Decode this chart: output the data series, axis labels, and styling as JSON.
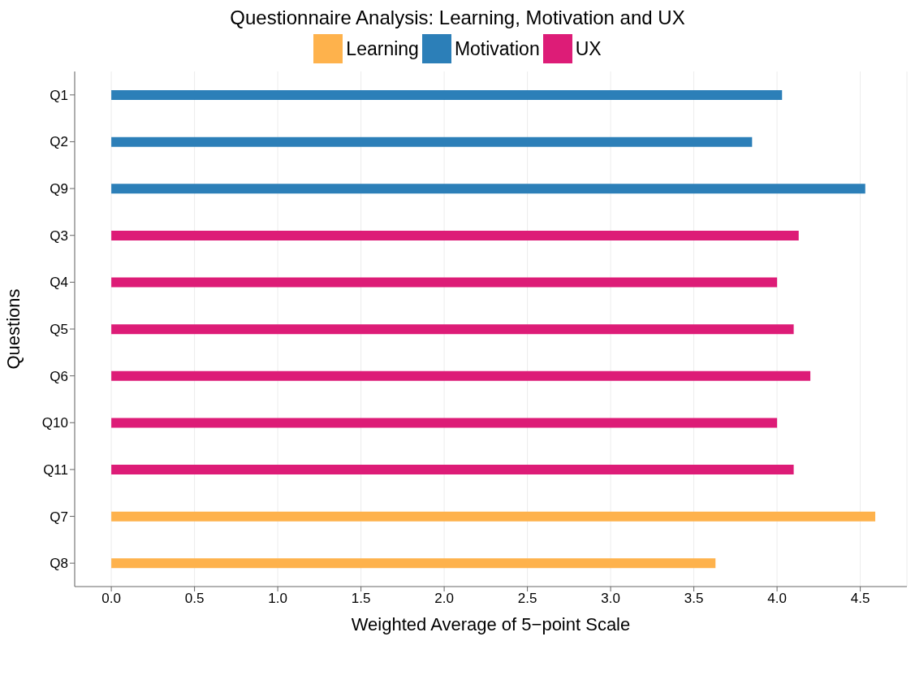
{
  "chart_data": {
    "type": "bar",
    "orientation": "horizontal",
    "stacked": true,
    "title": "Questionnaire Analysis: Learning, Motivation and UX",
    "xlabel": "Weighted Average of 5−point Scale",
    "ylabel": "Questions",
    "categories": [
      "Q1",
      "Q2",
      "Q9",
      "Q3",
      "Q4",
      "Q5",
      "Q6",
      "Q10",
      "Q11",
      "Q7",
      "Q8"
    ],
    "series": [
      {
        "name": "Learning",
        "color": "#feb24c",
        "values": [
          null,
          null,
          null,
          null,
          null,
          null,
          null,
          null,
          null,
          4.59,
          3.63
        ]
      },
      {
        "name": "Motivation",
        "color": "#2c7fb8",
        "values": [
          4.03,
          3.85,
          4.53,
          null,
          null,
          null,
          null,
          null,
          null,
          null,
          null
        ]
      },
      {
        "name": "UX",
        "color": "#dd1c77",
        "values": [
          null,
          null,
          null,
          4.13,
          4.0,
          4.1,
          4.2,
          4.0,
          4.1,
          null,
          null
        ]
      }
    ],
    "xlim": [
      -0.22,
      4.78
    ],
    "xticks": [
      {
        "value": 0,
        "label": "0.0"
      },
      {
        "value": 0.5,
        "label": "0.5"
      },
      {
        "value": 1,
        "label": "1.0"
      },
      {
        "value": 1.5,
        "label": "1.5"
      },
      {
        "value": 2,
        "label": "2.0"
      },
      {
        "value": 2.5,
        "label": "2.5"
      },
      {
        "value": 3,
        "label": "3.0"
      },
      {
        "value": 3.5,
        "label": "3.5"
      },
      {
        "value": 4,
        "label": "4.0"
      },
      {
        "value": 4.5,
        "label": "4.5"
      }
    ],
    "grid": "x",
    "legend": "top"
  }
}
